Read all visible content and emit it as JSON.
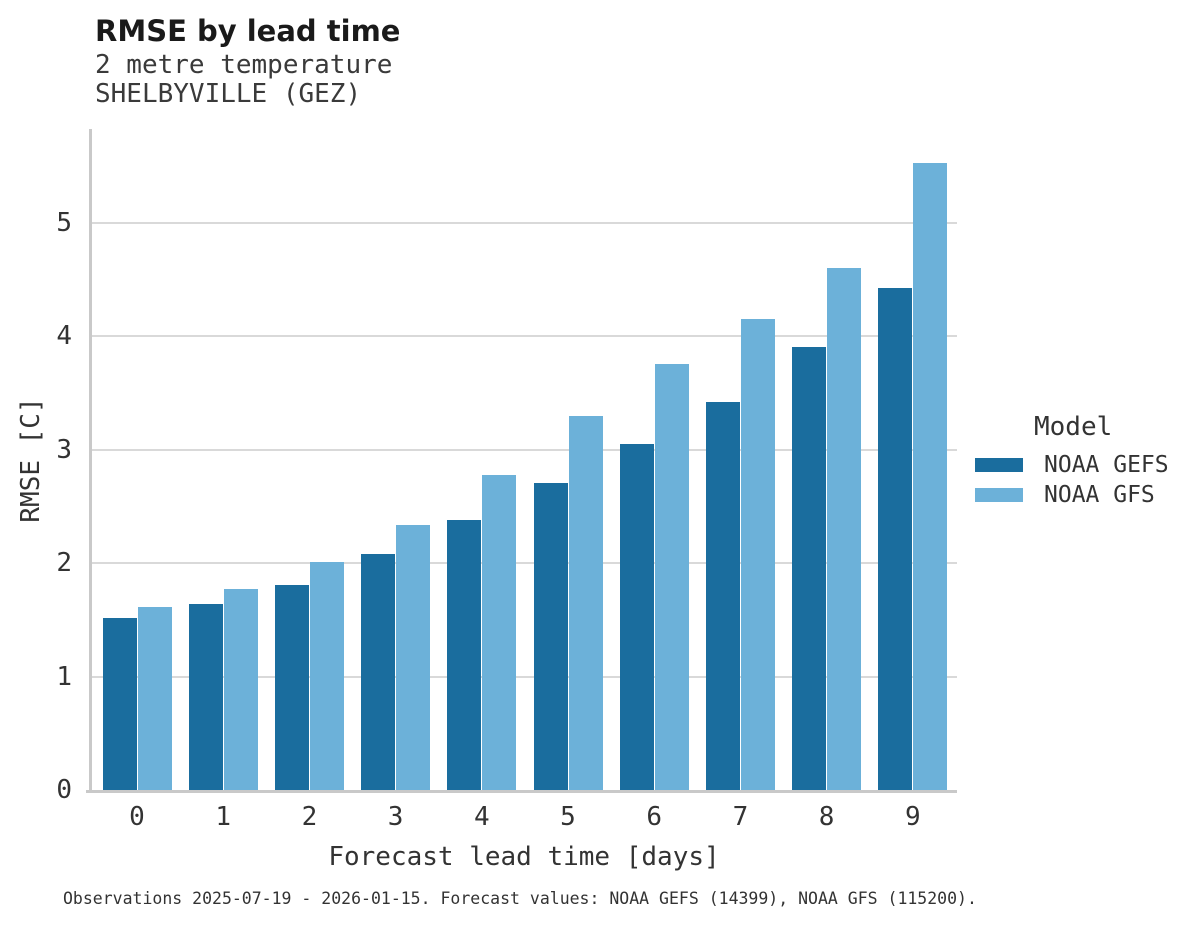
{
  "header": {
    "title": "RMSE by lead time",
    "subtitle1": "2 metre temperature",
    "subtitle2": "SHELBYVILLE (GEZ)"
  },
  "chart_data": {
    "type": "bar",
    "title": "RMSE by lead time",
    "subtitle": [
      "2 metre temperature",
      "SHELBYVILLE (GEZ)"
    ],
    "categories": [
      "0",
      "1",
      "2",
      "3",
      "4",
      "5",
      "6",
      "7",
      "8",
      "9"
    ],
    "series": [
      {
        "name": "NOAA GEFS",
        "color": "#1A6D9E",
        "values": [
          1.52,
          1.64,
          1.81,
          2.08,
          2.38,
          2.71,
          3.05,
          3.42,
          3.91,
          4.43
        ]
      },
      {
        "name": "NOAA GFS",
        "color": "#6CB1D9",
        "values": [
          1.61,
          1.77,
          2.01,
          2.34,
          2.78,
          3.3,
          3.76,
          4.15,
          4.6,
          5.53
        ]
      }
    ],
    "xlabel": "Forecast lead time [days]",
    "ylabel": "RMSE [C]",
    "ylim": [
      0,
      5.83
    ],
    "yticks": [
      0,
      1,
      2,
      3,
      4,
      5
    ],
    "grid": "horizontal-only",
    "legend_title": "Model",
    "legend_position": "right"
  },
  "footer": {
    "note": "Observations 2025-07-19 - 2026-01-15. Forecast values: NOAA GEFS (14399), NOAA GFS (115200)."
  },
  "colors": {
    "series_dark": "#1A6D9E",
    "series_light": "#6CB1D9",
    "gridline": "#D9D9D9",
    "axis_spine": "#C9C9C9",
    "text": "#333333",
    "background": "#FFFFFF"
  }
}
